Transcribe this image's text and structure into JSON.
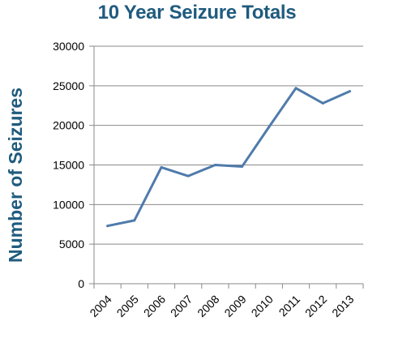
{
  "chart_data": {
    "type": "line",
    "title": "10 Year Seizure Totals",
    "xlabel": "",
    "ylabel": "Number of Seizures",
    "categories": [
      "2004",
      "2005",
      "2006",
      "2007",
      "2008",
      "2009",
      "2010",
      "2011",
      "2012",
      "2013"
    ],
    "series": [
      {
        "values": [
          7300,
          8000,
          14700,
          13600,
          15000,
          14800,
          19800,
          24700,
          22800,
          24300
        ]
      }
    ],
    "ylim": [
      0,
      30000
    ],
    "yticks": [
      "0",
      "5000",
      "10000",
      "15000",
      "20000",
      "25000",
      "30000"
    ],
    "grid": true,
    "legend": "none",
    "colors": {
      "line": "#4f7bab",
      "grid": "#8a8a8a",
      "title": "#1f5b7e"
    }
  }
}
